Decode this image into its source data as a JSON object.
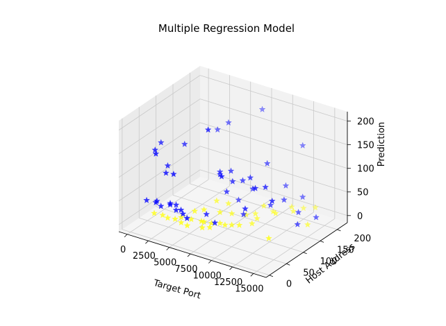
{
  "chart_data": {
    "type": "scatter",
    "title": "Multiple Regression Model",
    "xlabel": "Target Port",
    "ylabel": "Host Address",
    "zlabel": "Prediction",
    "xlim": [
      -1000,
      16500
    ],
    "ylim": [
      -10,
      230
    ],
    "zlim": [
      -15,
      220
    ],
    "x_ticks": [
      0,
      2500,
      5000,
      7500,
      10000,
      12500,
      15000
    ],
    "y_ticks": [
      0,
      50,
      100,
      150,
      200
    ],
    "z_ticks": [
      0,
      50,
      100,
      150,
      200
    ],
    "x_tick_labels": [
      "0",
      "2500",
      "5000",
      "7500",
      "10000",
      "12500",
      "15000"
    ],
    "y_tick_labels": [
      "0",
      "50",
      "100",
      "150",
      "200"
    ],
    "z_tick_labels": [
      "0",
      "50",
      "100",
      "150",
      "200"
    ],
    "marker": "star",
    "grid": true,
    "colors": {
      "blue": "#0000ff",
      "yellow": "#ffff00",
      "pane_side": "#ebebeb",
      "pane_back": "#f2f2f2",
      "pane_floor": "#f5f5f5",
      "grid": "#c9c9c9"
    },
    "series": [
      {
        "color": "#0000ff",
        "points": [
          [
            1200,
            60,
            152
          ],
          [
            2200,
            20,
            153
          ],
          [
            1500,
            35,
            150
          ],
          [
            3000,
            30,
            112
          ],
          [
            2600,
            45,
            118
          ],
          [
            4100,
            25,
            118
          ],
          [
            12000,
            100,
            98
          ],
          [
            11200,
            90,
            96
          ],
          [
            9800,
            110,
            101
          ],
          [
            8300,
            95,
            92
          ],
          [
            6400,
            105,
            97
          ],
          [
            7300,
            115,
            99
          ],
          [
            900,
            25,
            45
          ],
          [
            1800,
            30,
            43
          ],
          [
            2600,
            25,
            42
          ],
          [
            3300,
            35,
            44
          ],
          [
            4200,
            30,
            40
          ],
          [
            5100,
            28,
            38
          ],
          [
            4700,
            32,
            42
          ],
          [
            3800,
            40,
            44
          ],
          [
            2900,
            45,
            40
          ],
          [
            1600,
            38,
            41
          ],
          [
            5900,
            20,
            37
          ],
          [
            6600,
            60,
            30
          ],
          [
            8200,
            45,
            28
          ],
          [
            9400,
            100,
            26
          ],
          [
            7600,
            130,
            32
          ],
          [
            11000,
            140,
            35
          ],
          [
            13500,
            160,
            24
          ],
          [
            15200,
            170,
            18
          ],
          [
            14200,
            140,
            12
          ],
          [
            6800,
            60,
            210
          ],
          [
            7600,
            200,
            190
          ],
          [
            5600,
            150,
            175
          ],
          [
            4700,
            140,
            160
          ],
          [
            3200,
            80,
            150
          ],
          [
            8400,
            60,
            120
          ],
          [
            10200,
            150,
            114
          ],
          [
            8900,
            110,
            90
          ],
          [
            9700,
            120,
            72
          ],
          [
            11200,
            180,
            58
          ],
          [
            12800,
            190,
            38
          ],
          [
            10800,
            70,
            60
          ],
          [
            7800,
            90,
            70
          ],
          [
            6200,
            110,
            88
          ],
          [
            12000,
            210,
            133
          ],
          [
            12200,
            150,
            48
          ],
          [
            13200,
            90,
            80
          ]
        ]
      },
      {
        "color": "#ffff00",
        "points": [
          [
            1200,
            40,
            12
          ],
          [
            2000,
            45,
            10
          ],
          [
            2800,
            40,
            11
          ],
          [
            3600,
            42,
            12
          ],
          [
            4400,
            40,
            10
          ],
          [
            5200,
            38,
            9
          ],
          [
            4000,
            50,
            14
          ],
          [
            5000,
            55,
            13
          ],
          [
            6000,
            60,
            12
          ],
          [
            7000,
            65,
            11
          ],
          [
            6500,
            55,
            16
          ],
          [
            7800,
            70,
            13
          ],
          [
            6500,
            50,
            6
          ],
          [
            7200,
            55,
            8
          ],
          [
            8200,
            75,
            9
          ],
          [
            8800,
            80,
            10
          ],
          [
            9500,
            85,
            11
          ],
          [
            10200,
            120,
            12
          ],
          [
            11200,
            150,
            14
          ],
          [
            12500,
            170,
            16
          ],
          [
            10500,
            160,
            9
          ],
          [
            11500,
            190,
            10
          ],
          [
            12500,
            200,
            8
          ],
          [
            13500,
            210,
            10
          ],
          [
            10000,
            110,
            5
          ],
          [
            8500,
            130,
            6
          ],
          [
            9200,
            140,
            7
          ],
          [
            13200,
            80,
            6
          ],
          [
            14600,
            160,
            4
          ],
          [
            9800,
            150,
            22
          ],
          [
            8000,
            100,
            20
          ],
          [
            6800,
            120,
            25
          ],
          [
            5500,
            80,
            24
          ],
          [
            4800,
            70,
            22
          ],
          [
            7000,
            90,
            22
          ],
          [
            5800,
            110,
            30
          ]
        ]
      }
    ]
  }
}
